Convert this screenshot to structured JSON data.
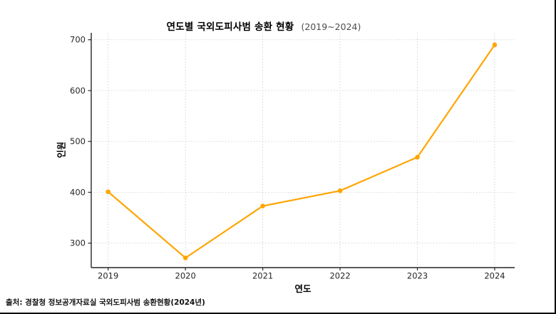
{
  "figure": {
    "title_main": "연도별 국외도피사범 송환 현황",
    "title_range": "(2019~2024)",
    "y_axis_label": "인원",
    "x_axis_label": "연도",
    "source": "출처: 경찰청 정보공개자료실 국외도피사범 송환현황(2024년)"
  },
  "chart_data": {
    "type": "line",
    "title": "연도별 국외도피사범 송환 현황 (2019~2024)",
    "xlabel": "연도",
    "ylabel": "인원",
    "categories": [
      "2019",
      "2020",
      "2021",
      "2022",
      "2023",
      "2024"
    ],
    "values": [
      401,
      271,
      373,
      403,
      469,
      690
    ],
    "y_ticks": [
      300,
      400,
      500,
      600,
      700
    ],
    "ylim": [
      252,
      714
    ],
    "grid": true,
    "grid_style": "dotted",
    "legend_position": "none",
    "colors": {
      "line": "#FFA500",
      "marker": "#FFA500",
      "grid": "#cfcfcf",
      "axis": "#262626",
      "tick_text": "#262626"
    }
  }
}
